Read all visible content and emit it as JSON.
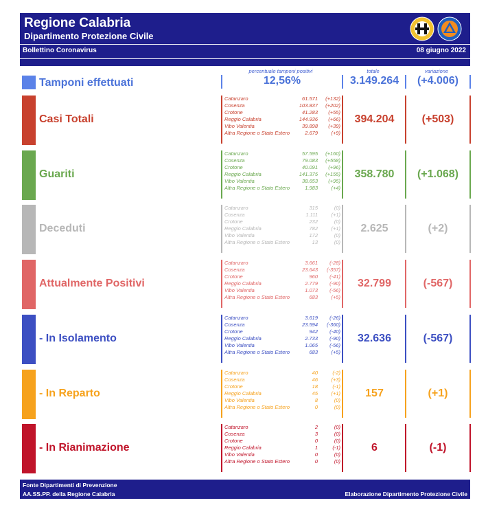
{
  "header": {
    "title": "Regione Calabria",
    "subtitle": "Dipartimento Protezione Civile",
    "bulletin": "Bollettino Coronavirus",
    "date": "08 giugno 2022"
  },
  "tamponi": {
    "label": "Tamponi effettuati",
    "pct_caption": "percentuale tamponi positivi",
    "pct_value": "12,56%",
    "totale_caption": "totale",
    "totale": "3.149.264",
    "variazione_caption": "variazione",
    "variazione": "(+4.006)",
    "color": "#5b82e8"
  },
  "sections": [
    {
      "label": "Casi Totali",
      "color": "#c8412e",
      "total": "394.204",
      "delta": "(+503)",
      "rows": [
        {
          "n": "Catanzaro",
          "v": "61.571",
          "d": "(+132)"
        },
        {
          "n": "Cosenza",
          "v": "103.837",
          "d": "(+202)"
        },
        {
          "n": "Crotone",
          "v": "41.283",
          "d": "(+55)"
        },
        {
          "n": "Reggio Calabria",
          "v": "144.936",
          "d": "(+66)"
        },
        {
          "n": "Vibo Valentia",
          "v": "39.898",
          "d": "(+39)"
        },
        {
          "n": "Altra Regione o Stato Estero",
          "v": "2.679",
          "d": "(+9)"
        }
      ]
    },
    {
      "label": "Guariti",
      "color": "#6aa84f",
      "total": "358.780",
      "delta": "(+1.068)",
      "rows": [
        {
          "n": "Catanzaro",
          "v": "57.595",
          "d": "(+160)"
        },
        {
          "n": "Cosenza",
          "v": "79.083",
          "d": "(+558)"
        },
        {
          "n": "Crotone",
          "v": "40.091",
          "d": "(+96)"
        },
        {
          "n": "Reggio Calabria",
          "v": "141.375",
          "d": "(+155)"
        },
        {
          "n": "Vibo Valentia",
          "v": "38.653",
          "d": "(+95)"
        },
        {
          "n": "Altra Regione o Stato Estero",
          "v": "1.983",
          "d": "(+4)"
        }
      ]
    },
    {
      "label": "Deceduti",
      "color": "#b7b7b7",
      "total": "2.625",
      "delta": "(+2)",
      "rows": [
        {
          "n": "Catanzaro",
          "v": "315",
          "d": "(0)"
        },
        {
          "n": "Cosenza",
          "v": "1.111",
          "d": "(+1)"
        },
        {
          "n": "Crotone",
          "v": "232",
          "d": "(0)"
        },
        {
          "n": "Reggio Calabria",
          "v": "782",
          "d": "(+1)"
        },
        {
          "n": "Vibo Valentia",
          "v": "172",
          "d": "(0)"
        },
        {
          "n": "Altra Regione o Stato Estero",
          "v": "13",
          "d": "(0)"
        }
      ]
    },
    {
      "label": "Attualmente Positivi",
      "color": "#e06666",
      "total": "32.799",
      "delta": "(-567)",
      "rows": [
        {
          "n": "Catanzaro",
          "v": "3.661",
          "d": "(-28)"
        },
        {
          "n": "Cosenza",
          "v": "23.643",
          "d": "(-357)"
        },
        {
          "n": "Crotone",
          "v": "960",
          "d": "(-41)"
        },
        {
          "n": "Reggio Calabria",
          "v": "2.779",
          "d": "(-90)"
        },
        {
          "n": "Vibo Valentia",
          "v": "1.073",
          "d": "(-56)"
        },
        {
          "n": "Altra Regione o Stato Estero",
          "v": "683",
          "d": "(+5)"
        }
      ]
    },
    {
      "label": "- In Isolamento",
      "color": "#3c4fc2",
      "total": "32.636",
      "delta": "(-567)",
      "rows": [
        {
          "n": "Catanzaro",
          "v": "3.619",
          "d": "(-26)"
        },
        {
          "n": "Cosenza",
          "v": "23.594",
          "d": "(-360)"
        },
        {
          "n": "Crotone",
          "v": "942",
          "d": "(-40)"
        },
        {
          "n": "Reggio Calabria",
          "v": "2.733",
          "d": "(-90)"
        },
        {
          "n": "Vibo Valentia",
          "v": "1.065",
          "d": "(-56)"
        },
        {
          "n": "Altra Regione o Stato Estero",
          "v": "683",
          "d": "(+5)"
        }
      ]
    },
    {
      "label": "- In Reparto",
      "color": "#f6a21d",
      "total": "157",
      "delta": "(+1)",
      "rows": [
        {
          "n": "Catanzaro",
          "v": "40",
          "d": "(-2)"
        },
        {
          "n": "Cosenza",
          "v": "46",
          "d": "(+3)"
        },
        {
          "n": "Crotone",
          "v": "18",
          "d": "(-1)"
        },
        {
          "n": "Reggio Calabria",
          "v": "45",
          "d": "(+1)"
        },
        {
          "n": "Vibo Valentia",
          "v": "8",
          "d": "(0)"
        },
        {
          "n": "Altra Regione o Stato Estero",
          "v": "0",
          "d": "(0)"
        }
      ]
    },
    {
      "label": "- In Rianimazione",
      "color": "#c0142a",
      "total": "6",
      "delta": "(-1)",
      "rows": [
        {
          "n": "Catanzaro",
          "v": "2",
          "d": "(0)"
        },
        {
          "n": "Cosenza",
          "v": "3",
          "d": "(0)"
        },
        {
          "n": "Crotone",
          "v": "0",
          "d": "(0)"
        },
        {
          "n": "Reggio Calabria",
          "v": "1",
          "d": "(-1)"
        },
        {
          "n": "Vibo Valentia",
          "v": "0",
          "d": "(0)"
        },
        {
          "n": "Altra Regione o Stato Estero",
          "v": "0",
          "d": "(0)"
        }
      ]
    }
  ],
  "footer": {
    "line1": "Fonte Dipartimenti di Prevenzione",
    "line2": "AA.SS.PP.  della Regione Calabria",
    "right": "Elaborazione Dipartimento Protezione Civile"
  }
}
